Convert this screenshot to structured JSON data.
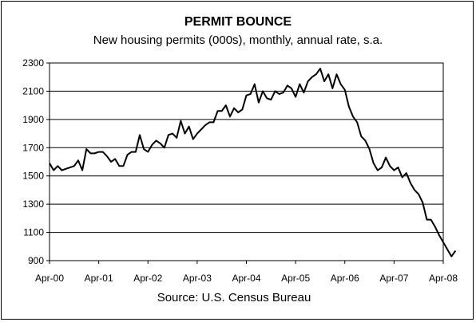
{
  "chart_data": {
    "type": "line",
    "title": "PERMIT BOUNCE",
    "subtitle": "New housing permits (000s), monthly, annual rate, s.a.",
    "source": "Source: U.S. Census Bureau",
    "ylim": [
      900,
      2300
    ],
    "yticks": [
      900,
      1100,
      1300,
      1500,
      1700,
      1900,
      2100,
      2300
    ],
    "xtick_labels": [
      "Apr-00",
      "Apr-01",
      "Apr-02",
      "Apr-03",
      "Apr-04",
      "Apr-05",
      "Apr-06",
      "Apr-07",
      "Apr-08"
    ],
    "grid": "horizontal",
    "line_color": "#000000",
    "x_start": "2000-04",
    "series": [
      {
        "values": [
          1590,
          1540,
          1570,
          1540,
          1550,
          1560,
          1570,
          1610,
          1540,
          1690,
          1660,
          1660,
          1670,
          1670,
          1640,
          1600,
          1620,
          1570,
          1570,
          1650,
          1670,
          1670,
          1790,
          1690,
          1670,
          1720,
          1750,
          1730,
          1700,
          1790,
          1800,
          1770,
          1890,
          1800,
          1850,
          1760,
          1800,
          1830,
          1860,
          1880,
          1880,
          1960,
          1960,
          2000,
          1920,
          1980,
          1950,
          1970,
          2070,
          2080,
          2150,
          2020,
          2100,
          2050,
          2040,
          2100,
          2080,
          2090,
          2140,
          2120,
          2060,
          2150,
          2090,
          2170,
          2200,
          2220,
          2260,
          2170,
          2220,
          2120,
          2220,
          2150,
          2110,
          1990,
          1920,
          1880,
          1780,
          1750,
          1690,
          1590,
          1540,
          1560,
          1630,
          1570,
          1540,
          1560,
          1490,
          1520,
          1450,
          1400,
          1370,
          1310,
          1190,
          1190,
          1140,
          1080,
          1030,
          980,
          930,
          970
        ]
      }
    ]
  }
}
